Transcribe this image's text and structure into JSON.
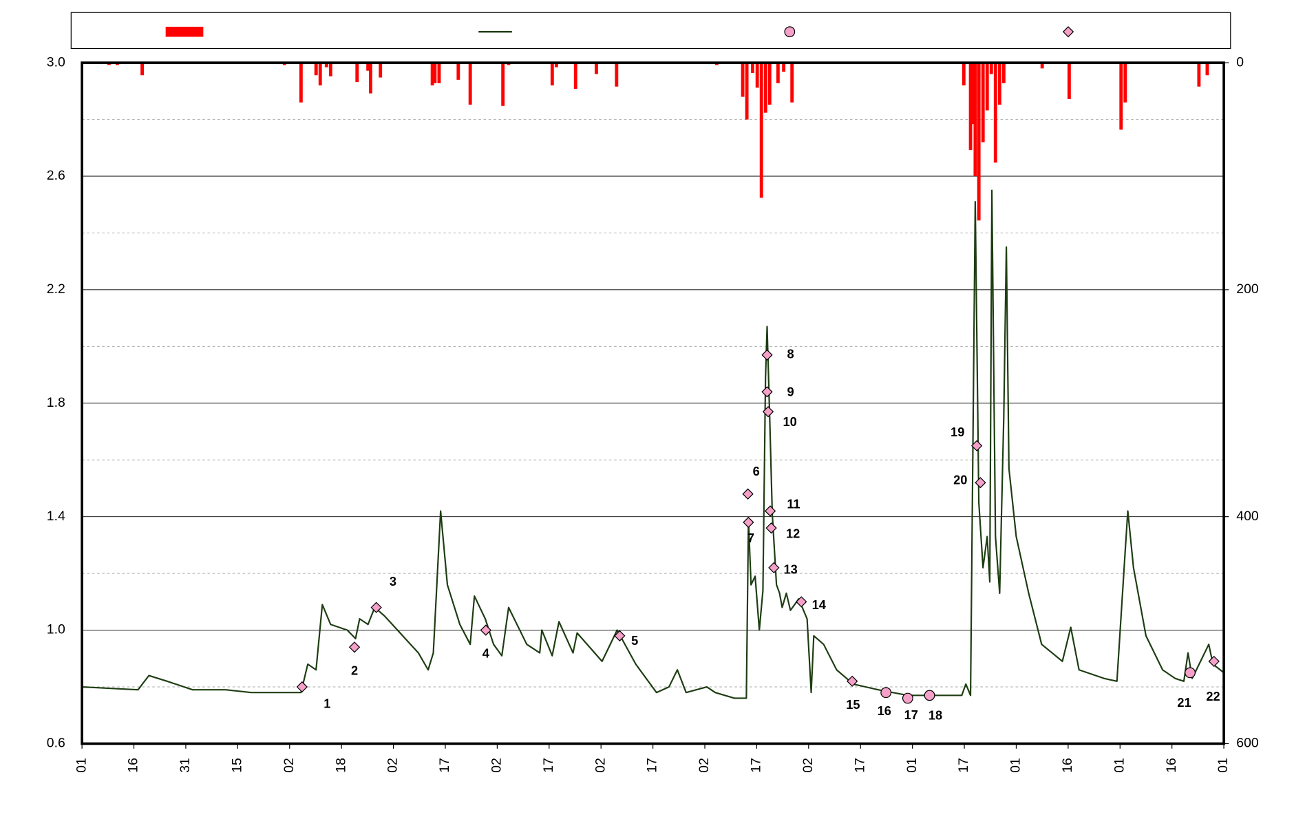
{
  "chart_data": {
    "type": "combo",
    "xlim": [
      0,
      22
    ],
    "xticks": [
      {
        "value": 0,
        "label": "01"
      },
      {
        "value": 1,
        "label": "16"
      },
      {
        "value": 2,
        "label": "31"
      },
      {
        "value": 3,
        "label": "15"
      },
      {
        "value": 4,
        "label": "02"
      },
      {
        "value": 5,
        "label": "18"
      },
      {
        "value": 6,
        "label": "02"
      },
      {
        "value": 7,
        "label": "17"
      },
      {
        "value": 8,
        "label": "02"
      },
      {
        "value": 9,
        "label": "17"
      },
      {
        "value": 10,
        "label": "02"
      },
      {
        "value": 11,
        "label": "17"
      },
      {
        "value": 12,
        "label": "02"
      },
      {
        "value": 13,
        "label": "17"
      },
      {
        "value": 14,
        "label": "02"
      },
      {
        "value": 15,
        "label": "17"
      },
      {
        "value": 16,
        "label": "01"
      },
      {
        "value": 17,
        "label": "17"
      },
      {
        "value": 18,
        "label": "01"
      },
      {
        "value": 19,
        "label": "16"
      },
      {
        "value": 20,
        "label": "01"
      },
      {
        "value": 21,
        "label": "16"
      },
      {
        "value": 22,
        "label": "01"
      }
    ],
    "ylim": [
      0.6,
      3.0
    ],
    "yticks": [
      0.6,
      {
        "value": 1,
        "label": "1.0"
      },
      1.4,
      1.8,
      2.2,
      2.6,
      {
        "value": 3,
        "label": "3.0"
      }
    ],
    "yminorticks": [
      0.8,
      1.2,
      1.6,
      2.0,
      2.4,
      2.8
    ],
    "y2lim": [
      600,
      0
    ],
    "y2ticks": [
      0,
      200,
      400,
      600
    ],
    "grid": true,
    "series": [
      {
        "type": "bar",
        "axis": "y2",
        "color": "#ff0000",
        "x": [
          0.52,
          0.68,
          1.16,
          1.56,
          2.61,
          3.09,
          3.9,
          4.22,
          4.51,
          4.59,
          4.71,
          4.79,
          5.3,
          5.51,
          5.56,
          5.75,
          6.75,
          6.8,
          6.88,
          7.25,
          7.48,
          7.77,
          8.11,
          8.22,
          9.06,
          9.14,
          9.51,
          9.91,
          10.02,
          10.3,
          11.26,
          11.51,
          12.23,
          12.73,
          12.81,
          12.92,
          13.01,
          13.09,
          13.17,
          13.25,
          13.41,
          13.52,
          13.68,
          16.99,
          17.12,
          17.16,
          17.21,
          17.28,
          17.36,
          17.44,
          17.52,
          17.6,
          17.68,
          17.76,
          18.5,
          19.02,
          20.02,
          20.1,
          21.52,
          21.68
        ],
        "values": [
          2,
          2,
          11,
          1,
          1,
          1,
          2,
          35,
          11,
          20,
          4,
          12,
          17,
          7,
          27,
          13,
          20,
          18,
          18,
          15,
          37,
          1,
          38,
          2,
          20,
          4,
          23,
          10,
          1,
          21,
          1,
          1,
          2,
          30,
          50,
          9,
          22,
          119,
          44,
          37,
          18,
          8,
          35,
          20,
          77,
          54,
          100,
          139,
          70,
          42,
          10,
          88,
          37,
          18,
          5,
          32,
          59,
          35,
          21,
          11
        ]
      },
      {
        "type": "line",
        "color": "#1e3d12",
        "x": [
          0,
          1.08,
          1.29,
          1.64,
          2.13,
          2.77,
          3.26,
          4.22,
          4.35,
          4.51,
          4.63,
          4.79,
          5.11,
          5.27,
          5.35,
          5.51,
          5.64,
          5.83,
          6.48,
          6.67,
          6.77,
          6.91,
          7.04,
          7.28,
          7.48,
          7.56,
          7.77,
          7.93,
          8.09,
          8.22,
          8.57,
          8.82,
          8.86,
          9.06,
          9.19,
          9.46,
          9.54,
          10.02,
          10.31,
          10.67,
          10.99,
          11.07,
          11.31,
          11.47,
          11.64,
          12.04,
          12.2,
          12.57,
          12.8,
          12.84,
          12.89,
          12.97,
          13.05,
          13.12,
          13.17,
          13.2,
          13.25,
          13.3,
          13.38,
          13.44,
          13.49,
          13.57,
          13.65,
          13.81,
          13.97,
          14.05,
          14.1,
          14.29,
          14.54,
          14.86,
          15.34,
          15.91,
          16.31,
          16.63,
          16.95,
          17.03,
          17.12,
          17.21,
          17.28,
          17.36,
          17.44,
          17.49,
          17.53,
          17.6,
          17.68,
          17.76,
          17.81,
          17.86,
          18,
          18.24,
          18.49,
          18.89,
          19.05,
          19.21,
          19.69,
          19.94,
          20.1,
          20.15,
          20.26,
          20.5,
          20.82,
          21.06,
          21.23,
          21.31,
          21.39,
          21.71,
          21.79,
          22
        ],
        "values": [
          0.8,
          0.79,
          0.84,
          0.82,
          0.79,
          0.79,
          0.78,
          0.78,
          0.88,
          0.86,
          1.09,
          1.02,
          1,
          0.97,
          1.04,
          1.02,
          1.08,
          1.05,
          0.92,
          0.86,
          0.92,
          1.42,
          1.16,
          1.02,
          0.95,
          1.12,
          1.04,
          0.95,
          0.91,
          1.08,
          0.95,
          0.92,
          1,
          0.91,
          1.03,
          0.92,
          0.99,
          0.89,
          1,
          0.88,
          0.8,
          0.78,
          0.8,
          0.86,
          0.78,
          0.8,
          0.78,
          0.76,
          0.76,
          1.39,
          1.16,
          1.19,
          1,
          1.14,
          1.89,
          2.07,
          1.75,
          1.41,
          1.16,
          1.13,
          1.08,
          1.13,
          1.07,
          1.11,
          1.04,
          0.78,
          0.98,
          0.95,
          0.86,
          0.81,
          0.79,
          0.77,
          0.77,
          0.77,
          0.77,
          0.81,
          0.77,
          2.51,
          1.45,
          1.22,
          1.33,
          1.17,
          2.55,
          1.33,
          1.13,
          1.75,
          2.35,
          1.57,
          1.33,
          1.13,
          0.95,
          0.89,
          1.01,
          0.86,
          0.83,
          0.82,
          1.28,
          1.42,
          1.22,
          0.98,
          0.86,
          0.83,
          0.82,
          0.92,
          0.83,
          0.95,
          0.88,
          0.85
        ]
      },
      {
        "type": "scatter",
        "marker": "circle",
        "color": "#f4a0c8",
        "x": [
          15.49,
          15.91,
          16.33,
          21.35
        ],
        "values": [
          0.78,
          0.76,
          0.77,
          0.85
        ],
        "labels": [
          "16",
          "17",
          "18",
          "21"
        ]
      },
      {
        "type": "scatter",
        "marker": "diamond",
        "color": "#f4a0c8",
        "x": [
          4.24,
          5.25,
          5.67,
          7.78,
          10.36,
          12.83,
          12.84,
          13.2,
          13.2,
          13.22,
          13.26,
          13.28,
          13.33,
          13.86,
          14.84,
          17.24,
          17.31,
          21.81
        ],
        "values": [
          0.8,
          0.94,
          1.08,
          1,
          0.98,
          1.48,
          1.38,
          1.97,
          1.84,
          1.77,
          1.42,
          1.36,
          1.22,
          1.1,
          0.82,
          1.65,
          1.52,
          0.89
        ],
        "labels": [
          "1",
          "2",
          "3",
          "4",
          "5",
          "6",
          "7",
          "8",
          "9",
          "10",
          "11",
          "12",
          "13",
          "14",
          "15",
          "19",
          "20",
          "22"
        ]
      }
    ]
  }
}
